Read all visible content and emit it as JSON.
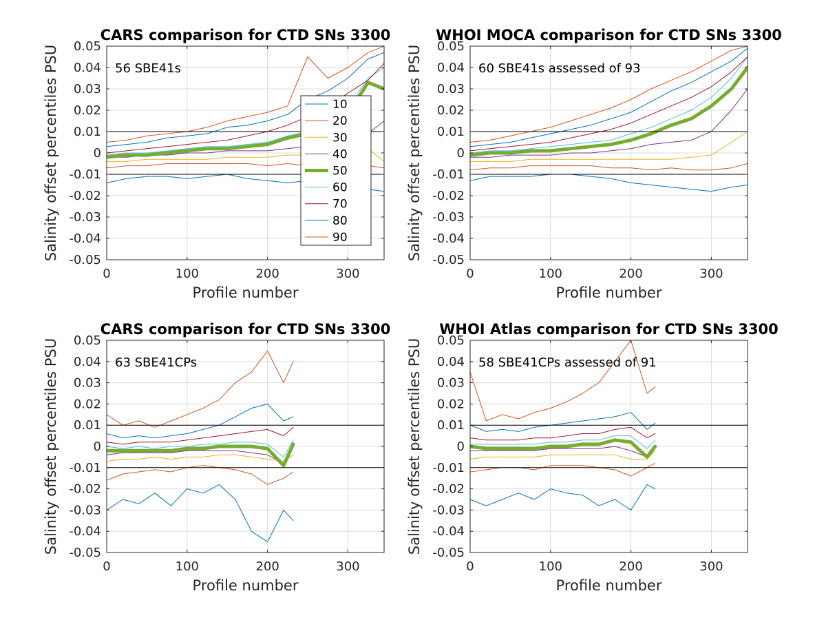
{
  "chart_data": [
    {
      "type": "line",
      "title": "CARS comparison for CTD SNs 3300",
      "xlabel": "Profile number",
      "ylabel": "Salinity offset percentiles PSU",
      "annotation": "56 SBE41s",
      "xlim": [
        0,
        345
      ],
      "ylim": [
        -0.05,
        0.05
      ],
      "xticks": [
        0,
        100,
        200,
        300
      ],
      "yticks": [
        -0.05,
        -0.04,
        -0.03,
        -0.02,
        -0.01,
        0,
        0.01,
        0.02,
        0.03,
        0.04,
        0.05
      ],
      "ytick_labels": [
        "-0.05",
        "-0.04",
        "-0.03",
        "-0.02",
        "-0.01",
        "0",
        "0.01",
        "0.02",
        "0.03",
        "0.04",
        "0.05"
      ],
      "reference_lines": [
        0.01,
        -0.01
      ],
      "grid": true,
      "legend": {
        "title": "",
        "location": "right-center",
        "entries": [
          "10",
          "20",
          "30",
          "40",
          "50",
          "60",
          "70",
          "80",
          "90"
        ]
      },
      "x": [
        0,
        25,
        50,
        75,
        100,
        125,
        150,
        175,
        200,
        225,
        250,
        275,
        300,
        325,
        345
      ],
      "series": [
        {
          "name": "10",
          "color": "#0072BD",
          "width": 1,
          "values": [
            -0.014,
            -0.012,
            -0.011,
            -0.011,
            -0.012,
            -0.011,
            -0.01,
            -0.012,
            -0.013,
            -0.014,
            -0.013,
            -0.015,
            -0.016,
            -0.017,
            -0.018
          ]
        },
        {
          "name": "20",
          "color": "#D95319",
          "width": 1,
          "values": [
            -0.007,
            -0.006,
            -0.006,
            -0.005,
            -0.005,
            -0.005,
            -0.005,
            -0.005,
            -0.006,
            -0.005,
            -0.006,
            -0.005,
            -0.006,
            -0.006,
            -0.007
          ]
        },
        {
          "name": "30",
          "color": "#EDB120",
          "width": 1,
          "values": [
            -0.004,
            -0.004,
            -0.003,
            -0.003,
            -0.003,
            -0.003,
            -0.002,
            -0.002,
            -0.002,
            -0.001,
            -0.001,
            0.0,
            -0.001,
            0.002,
            -0.004
          ]
        },
        {
          "name": "40",
          "color": "#7E2F8E",
          "width": 1,
          "values": [
            -0.002,
            -0.002,
            -0.001,
            -0.001,
            0.0,
            0.0,
            0.001,
            0.001,
            0.001,
            0.002,
            0.003,
            0.004,
            0.005,
            0.009,
            0.015
          ]
        },
        {
          "name": "50",
          "color": "#77AC30",
          "width": 5,
          "values": [
            -0.002,
            -0.001,
            -0.001,
            0.0,
            0.001,
            0.002,
            0.002,
            0.003,
            0.004,
            0.007,
            0.009,
            0.012,
            0.018,
            0.033,
            0.03
          ]
        },
        {
          "name": "60",
          "color": "#4DBEEE",
          "width": 1,
          "values": [
            -0.001,
            0.0,
            0.0,
            0.001,
            0.002,
            0.003,
            0.003,
            0.004,
            0.005,
            0.008,
            0.01,
            0.014,
            0.021,
            0.035,
            0.04
          ]
        },
        {
          "name": "70",
          "color": "#A2142F",
          "width": 1,
          "values": [
            0.0,
            0.001,
            0.002,
            0.003,
            0.004,
            0.005,
            0.006,
            0.008,
            0.01,
            0.013,
            0.017,
            0.022,
            0.028,
            0.034,
            0.042
          ]
        },
        {
          "name": "80",
          "color": "#0072BD",
          "width": 1,
          "values": [
            0.003,
            0.004,
            0.005,
            0.007,
            0.008,
            0.009,
            0.012,
            0.013,
            0.015,
            0.018,
            0.025,
            0.029,
            0.035,
            0.044,
            0.047
          ]
        },
        {
          "name": "90",
          "color": "#D95319",
          "width": 1,
          "values": [
            0.005,
            0.006,
            0.008,
            0.009,
            0.01,
            0.012,
            0.015,
            0.017,
            0.019,
            0.022,
            0.045,
            0.035,
            0.04,
            0.047,
            0.05
          ]
        }
      ]
    },
    {
      "type": "line",
      "title": "WHOI MOCA comparison for CTD SNs 3300",
      "xlabel": "Profile number",
      "ylabel": "Salinity offset percentiles PSU",
      "annotation": "60 SBE41s assessed of 93",
      "xlim": [
        0,
        345
      ],
      "ylim": [
        -0.05,
        0.05
      ],
      "xticks": [
        0,
        100,
        200,
        300
      ],
      "yticks": [
        -0.05,
        -0.04,
        -0.03,
        -0.02,
        -0.01,
        0,
        0.01,
        0.02,
        0.03,
        0.04,
        0.05
      ],
      "ytick_labels": [
        "-0.05",
        "-0.04",
        "-0.03",
        "-0.02",
        "-0.01",
        "0",
        "0.01",
        "0.02",
        "0.03",
        "0.04",
        "0.05"
      ],
      "reference_lines": [
        0.01,
        -0.01
      ],
      "grid": true,
      "x": [
        0,
        25,
        50,
        75,
        100,
        125,
        150,
        175,
        200,
        225,
        250,
        275,
        300,
        325,
        345
      ],
      "series": [
        {
          "name": "10",
          "color": "#0072BD",
          "width": 1,
          "values": [
            -0.013,
            -0.011,
            -0.011,
            -0.011,
            -0.01,
            -0.01,
            -0.011,
            -0.012,
            -0.014,
            -0.015,
            -0.016,
            -0.017,
            -0.018,
            -0.016,
            -0.015
          ]
        },
        {
          "name": "20",
          "color": "#D95319",
          "width": 1,
          "values": [
            -0.008,
            -0.007,
            -0.007,
            -0.006,
            -0.006,
            -0.006,
            -0.006,
            -0.007,
            -0.007,
            -0.008,
            -0.007,
            -0.008,
            -0.008,
            -0.007,
            -0.005
          ]
        },
        {
          "name": "30",
          "color": "#EDB120",
          "width": 1,
          "values": [
            -0.004,
            -0.004,
            -0.004,
            -0.003,
            -0.003,
            -0.003,
            -0.003,
            -0.003,
            -0.003,
            -0.003,
            -0.003,
            -0.002,
            -0.001,
            0.005,
            0.01
          ]
        },
        {
          "name": "40",
          "color": "#7E2F8E",
          "width": 1,
          "values": [
            -0.002,
            -0.002,
            -0.001,
            -0.001,
            -0.001,
            0.0,
            0.0,
            0.001,
            0.002,
            0.004,
            0.005,
            0.006,
            0.01,
            0.02,
            0.03
          ]
        },
        {
          "name": "50",
          "color": "#77AC30",
          "width": 5,
          "values": [
            -0.001,
            0.0,
            0.0,
            0.001,
            0.001,
            0.002,
            0.003,
            0.004,
            0.006,
            0.009,
            0.013,
            0.016,
            0.022,
            0.03,
            0.04
          ]
        },
        {
          "name": "60",
          "color": "#4DBEEE",
          "width": 1,
          "values": [
            0.0,
            0.001,
            0.001,
            0.002,
            0.003,
            0.004,
            0.005,
            0.006,
            0.009,
            0.012,
            0.016,
            0.02,
            0.026,
            0.035,
            0.045
          ]
        },
        {
          "name": "70",
          "color": "#A2142F",
          "width": 1,
          "values": [
            0.001,
            0.002,
            0.003,
            0.004,
            0.005,
            0.007,
            0.009,
            0.011,
            0.014,
            0.018,
            0.022,
            0.026,
            0.031,
            0.038,
            0.045
          ]
        },
        {
          "name": "80",
          "color": "#0072BD",
          "width": 1,
          "values": [
            0.003,
            0.004,
            0.005,
            0.007,
            0.009,
            0.011,
            0.013,
            0.016,
            0.019,
            0.024,
            0.029,
            0.033,
            0.038,
            0.043,
            0.049
          ]
        },
        {
          "name": "90",
          "color": "#D95319",
          "width": 1,
          "values": [
            0.005,
            0.006,
            0.008,
            0.01,
            0.012,
            0.015,
            0.018,
            0.021,
            0.025,
            0.03,
            0.034,
            0.038,
            0.043,
            0.048,
            0.05
          ]
        }
      ]
    },
    {
      "type": "line",
      "title": "CARS comparison for CTD SNs 3300",
      "xlabel": "Profile number",
      "ylabel": "Salinity offset percentiles PSU",
      "annotation": "63 SBE41CPs",
      "xlim": [
        0,
        345
      ],
      "ylim": [
        -0.05,
        0.05
      ],
      "xticks": [
        0,
        100,
        200,
        300
      ],
      "yticks": [
        -0.05,
        -0.04,
        -0.03,
        -0.02,
        -0.01,
        0,
        0.01,
        0.02,
        0.03,
        0.04,
        0.05
      ],
      "ytick_labels": [
        "-0.05",
        "-0.04",
        "-0.03",
        "-0.02",
        "-0.01",
        "0",
        "0.01",
        "0.02",
        "0.03",
        "0.04",
        "0.05"
      ],
      "reference_lines": [
        0.01,
        -0.01
      ],
      "grid": true,
      "x": [
        0,
        20,
        40,
        60,
        80,
        100,
        120,
        140,
        160,
        180,
        200,
        220,
        232
      ],
      "series": [
        {
          "name": "10",
          "color": "#0072BD",
          "width": 1,
          "values": [
            -0.03,
            -0.025,
            -0.027,
            -0.022,
            -0.028,
            -0.02,
            -0.022,
            -0.018,
            -0.025,
            -0.04,
            -0.045,
            -0.03,
            -0.035
          ]
        },
        {
          "name": "20",
          "color": "#D95319",
          "width": 1,
          "values": [
            -0.016,
            -0.013,
            -0.012,
            -0.011,
            -0.012,
            -0.01,
            -0.009,
            -0.01,
            -0.011,
            -0.013,
            -0.018,
            -0.015,
            -0.012
          ]
        },
        {
          "name": "30",
          "color": "#EDB120",
          "width": 1,
          "values": [
            -0.007,
            -0.006,
            -0.006,
            -0.005,
            -0.006,
            -0.005,
            -0.005,
            -0.004,
            -0.004,
            -0.005,
            -0.006,
            -0.007,
            -0.004
          ]
        },
        {
          "name": "40",
          "color": "#7E2F8E",
          "width": 1,
          "values": [
            -0.004,
            -0.003,
            -0.003,
            -0.003,
            -0.003,
            -0.002,
            -0.002,
            -0.002,
            -0.002,
            -0.003,
            -0.004,
            -0.008,
            0.0
          ]
        },
        {
          "name": "50",
          "color": "#77AC30",
          "width": 5,
          "values": [
            -0.002,
            -0.002,
            -0.002,
            -0.002,
            -0.002,
            -0.001,
            -0.001,
            0.0,
            0.0,
            0.0,
            -0.001,
            -0.009,
            0.001
          ]
        },
        {
          "name": "60",
          "color": "#4DBEEE",
          "width": 1,
          "values": [
            0.0,
            -0.001,
            0.0,
            -0.001,
            0.0,
            0.0,
            0.001,
            0.001,
            0.002,
            0.002,
            0.001,
            -0.005,
            0.003
          ]
        },
        {
          "name": "70",
          "color": "#A2142F",
          "width": 1,
          "values": [
            0.002,
            0.001,
            0.002,
            0.002,
            0.002,
            0.003,
            0.004,
            0.005,
            0.006,
            0.007,
            0.008,
            0.005,
            0.009
          ]
        },
        {
          "name": "80",
          "color": "#0072BD",
          "width": 1,
          "values": [
            0.006,
            0.004,
            0.005,
            0.004,
            0.005,
            0.006,
            0.008,
            0.01,
            0.014,
            0.018,
            0.02,
            0.012,
            0.014
          ]
        },
        {
          "name": "90",
          "color": "#D95319",
          "width": 1,
          "values": [
            0.015,
            0.01,
            0.012,
            0.009,
            0.012,
            0.015,
            0.018,
            0.022,
            0.03,
            0.035,
            0.045,
            0.03,
            0.04
          ]
        }
      ]
    },
    {
      "type": "line",
      "title": "WHOI Atlas comparison for CTD SNs 3300",
      "xlabel": "Profile number",
      "ylabel": "Salinity offset percentiles PSU",
      "annotation": "58 SBE41CPs assessed of 91",
      "xlim": [
        0,
        345
      ],
      "ylim": [
        -0.05,
        0.05
      ],
      "xticks": [
        0,
        100,
        200,
        300
      ],
      "yticks": [
        -0.05,
        -0.04,
        -0.03,
        -0.02,
        -0.01,
        0,
        0.01,
        0.02,
        0.03,
        0.04,
        0.05
      ],
      "ytick_labels": [
        "-0.05",
        "-0.04",
        "-0.03",
        "-0.02",
        "-0.01",
        "0",
        "0.01",
        "0.02",
        "0.03",
        "0.04",
        "0.05"
      ],
      "reference_lines": [
        0.01,
        -0.01
      ],
      "grid": true,
      "x": [
        0,
        20,
        40,
        60,
        80,
        100,
        120,
        140,
        160,
        180,
        200,
        220,
        230
      ],
      "series": [
        {
          "name": "10",
          "color": "#0072BD",
          "width": 1,
          "values": [
            -0.025,
            -0.028,
            -0.025,
            -0.022,
            -0.025,
            -0.02,
            -0.022,
            -0.023,
            -0.028,
            -0.025,
            -0.03,
            -0.018,
            -0.02
          ]
        },
        {
          "name": "20",
          "color": "#D95319",
          "width": 1,
          "values": [
            -0.012,
            -0.011,
            -0.01,
            -0.01,
            -0.011,
            -0.009,
            -0.009,
            -0.009,
            -0.01,
            -0.011,
            -0.014,
            -0.01,
            -0.008
          ]
        },
        {
          "name": "30",
          "color": "#EDB120",
          "width": 1,
          "values": [
            -0.006,
            -0.005,
            -0.005,
            -0.005,
            -0.005,
            -0.004,
            -0.004,
            -0.004,
            -0.004,
            -0.004,
            -0.006,
            -0.006,
            -0.002
          ]
        },
        {
          "name": "40",
          "color": "#7E2F8E",
          "width": 1,
          "values": [
            -0.002,
            -0.002,
            -0.002,
            -0.002,
            -0.002,
            -0.001,
            -0.001,
            -0.001,
            -0.001,
            0.0,
            -0.002,
            -0.005,
            0.0
          ]
        },
        {
          "name": "50",
          "color": "#77AC30",
          "width": 5,
          "values": [
            0.0,
            -0.001,
            -0.001,
            -0.001,
            -0.001,
            0.0,
            0.0,
            0.001,
            0.001,
            0.003,
            0.002,
            -0.005,
            0.0
          ]
        },
        {
          "name": "60",
          "color": "#4DBEEE",
          "width": 1,
          "values": [
            0.001,
            0.001,
            0.001,
            0.001,
            0.001,
            0.002,
            0.002,
            0.003,
            0.003,
            0.005,
            0.005,
            -0.001,
            0.003
          ]
        },
        {
          "name": "70",
          "color": "#A2142F",
          "width": 1,
          "values": [
            0.004,
            0.003,
            0.003,
            0.003,
            0.004,
            0.004,
            0.005,
            0.006,
            0.006,
            0.008,
            0.009,
            0.004,
            0.006
          ]
        },
        {
          "name": "80",
          "color": "#0072BD",
          "width": 1,
          "values": [
            0.01,
            0.007,
            0.008,
            0.007,
            0.009,
            0.01,
            0.011,
            0.012,
            0.013,
            0.014,
            0.016,
            0.008,
            0.011
          ]
        },
        {
          "name": "90",
          "color": "#D95319",
          "width": 1,
          "values": [
            0.035,
            0.012,
            0.015,
            0.013,
            0.016,
            0.018,
            0.021,
            0.025,
            0.03,
            0.04,
            0.05,
            0.025,
            0.028
          ]
        }
      ]
    }
  ]
}
